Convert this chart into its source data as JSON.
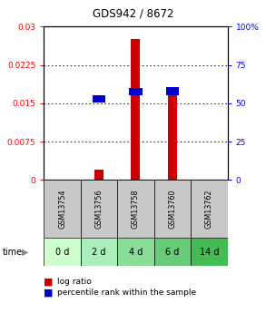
{
  "title": "GDS942 / 8672",
  "samples": [
    "GSM13754",
    "GSM13756",
    "GSM13758",
    "GSM13760",
    "GSM13762"
  ],
  "time_labels": [
    "0 d",
    "2 d",
    "4 d",
    "6 d",
    "14 d"
  ],
  "log_ratio": [
    0.0,
    0.002,
    0.0275,
    0.017,
    0.0
  ],
  "percentile_rank": [
    0.0,
    53.0,
    57.5,
    58.0,
    0.0
  ],
  "ylim_left": [
    0,
    0.03
  ],
  "ylim_right": [
    0,
    100
  ],
  "yticks_left": [
    0,
    0.0075,
    0.015,
    0.0225,
    0.03
  ],
  "ytick_labels_left": [
    "0",
    "0.0075",
    "0.015",
    "0.0225",
    "0.03"
  ],
  "yticks_right": [
    0,
    25,
    50,
    75,
    100
  ],
  "ytick_labels_right": [
    "0",
    "25",
    "50",
    "75",
    "100%"
  ],
  "bar_color_log": "#cc0000",
  "bar_color_pct": "#0000cc",
  "bar_width": 0.45,
  "sample_box_color": "#c8c8c8",
  "time_box_colors": [
    "#ccffcc",
    "#aaeebb",
    "#88dd99",
    "#66cc77",
    "#44bb55"
  ],
  "legend_log_label": "log ratio",
  "legend_pct_label": "percentile rank within the sample"
}
